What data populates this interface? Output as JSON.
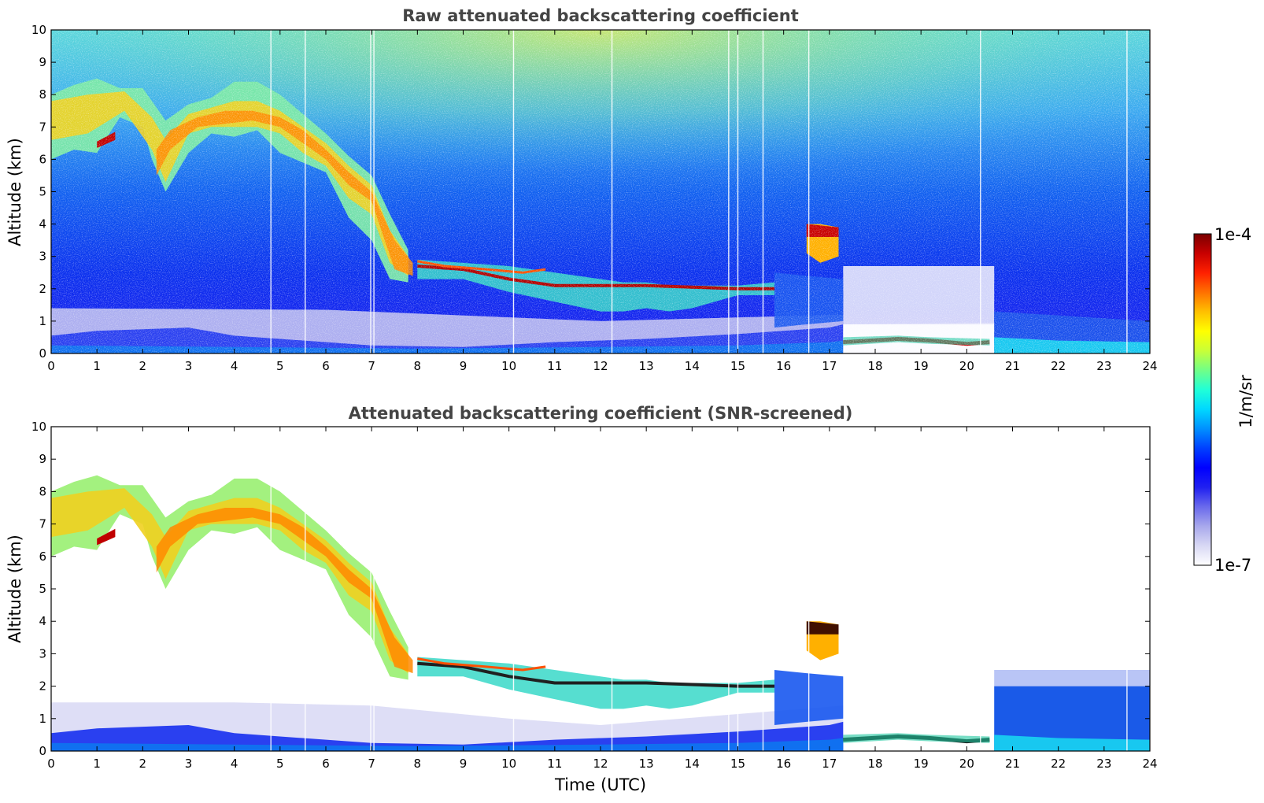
{
  "chart_data": [
    {
      "type": "heatmap",
      "title": "Raw attenuated backscattering coefficient",
      "xlabel": "",
      "ylabel": "Altitude (km)",
      "xlim": [
        0,
        24
      ],
      "ylim": [
        0,
        10
      ],
      "xticks": [
        0,
        1,
        2,
        3,
        4,
        5,
        6,
        7,
        8,
        9,
        10,
        11,
        12,
        13,
        14,
        15,
        16,
        17,
        18,
        19,
        20,
        21,
        22,
        23,
        24
      ],
      "yticks": [
        0,
        1,
        2,
        3,
        4,
        5,
        6,
        7,
        8,
        9,
        10
      ],
      "features": [
        {
          "name": "high cloud",
          "points": [
            [
              0,
              7.3
            ],
            [
              0.5,
              7.6
            ],
            [
              1,
              7.3
            ],
            [
              1.5,
              7.8
            ],
            [
              2,
              7.6
            ],
            [
              2.4,
              5.4
            ],
            [
              3,
              7.0
            ],
            [
              3.5,
              7.3
            ],
            [
              4,
              7.4
            ],
            [
              4.5,
              7.6
            ],
            [
              5,
              7.2
            ],
            [
              5.5,
              6.4
            ],
            [
              6,
              6.1
            ],
            [
              6.5,
              5.2
            ],
            [
              7,
              4.6
            ],
            [
              7.4,
              3.5
            ],
            [
              7.8,
              2.8
            ],
            [
              8,
              2.7
            ]
          ]
        },
        {
          "name": "cloud layer",
          "points": [
            [
              8,
              2.7
            ],
            [
              9,
              2.6
            ],
            [
              10,
              2.3
            ],
            [
              11,
              2.1
            ],
            [
              12,
              2.1
            ],
            [
              13,
              2.1
            ],
            [
              14,
              2.05
            ],
            [
              15,
              2.0
            ],
            [
              15.8,
              2.0
            ]
          ]
        },
        {
          "name": "cloud 16.5-17.2h",
          "points": [
            [
              16.5,
              3.8
            ],
            [
              17.2,
              3.8
            ]
          ]
        },
        {
          "name": "low layer",
          "points": [
            [
              17.3,
              0.35
            ],
            [
              18.5,
              0.45
            ],
            [
              19.2,
              0.4
            ],
            [
              20,
              0.3
            ],
            [
              20.5,
              0.35
            ]
          ]
        }
      ]
    },
    {
      "type": "heatmap",
      "title": "Attenuated backscattering coefficient (SNR-screened)",
      "xlabel": "Time (UTC)",
      "ylabel": "Altitude (km)",
      "xlim": [
        0,
        24
      ],
      "ylim": [
        0,
        10
      ],
      "xticks": [
        0,
        1,
        2,
        3,
        4,
        5,
        6,
        7,
        8,
        9,
        10,
        11,
        12,
        13,
        14,
        15,
        16,
        17,
        18,
        19,
        20,
        21,
        22,
        23,
        24
      ],
      "yticks": [
        0,
        1,
        2,
        3,
        4,
        5,
        6,
        7,
        8,
        9,
        10
      ]
    }
  ],
  "colorbar": {
    "label": "1/m/sr",
    "min_label": "1e-7",
    "max_label": "1e-4",
    "colors": [
      "#ffffff",
      "#d8d8f4",
      "#a8a8ec",
      "#6a6aec",
      "#2020f0",
      "#0000ff",
      "#0040ff",
      "#0090ff",
      "#00d8ff",
      "#20ffd8",
      "#70ff88",
      "#c8ff38",
      "#ffff00",
      "#ffc000",
      "#ff7000",
      "#ff2000",
      "#c80000",
      "#7a0000"
    ]
  },
  "ui": {
    "top_title": "Raw attenuated backscattering coefficient",
    "bottom_title": "Attenuated backscattering coefficient (SNR-screened)",
    "ylabel_top": "Altitude (km)",
    "ylabel_bottom": "Altitude (km)",
    "xlabel": "Time (UTC)",
    "colorbar_label": "1/m/sr",
    "colorbar_max": "1e-4",
    "colorbar_min": "1e-7"
  }
}
